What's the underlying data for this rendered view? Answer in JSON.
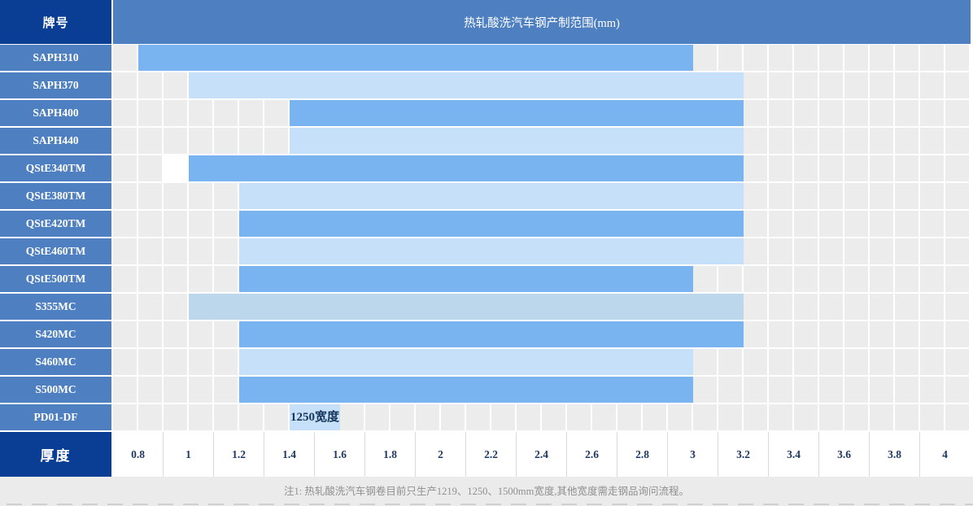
{
  "header": {
    "corner_label": "牌号",
    "title": "热轧酸洗汽车钢产制范围(mm)"
  },
  "axis": {
    "label": "厚度",
    "ticks": [
      "0.8",
      "1",
      "1.2",
      "1.4",
      "1.6",
      "1.8",
      "2",
      "2.2",
      "2.4",
      "2.6",
      "2.8",
      "3",
      "3.2",
      "3.4",
      "3.6",
      "3.8",
      "4"
    ]
  },
  "note": "注1: 热轧酸洗汽车钢卷目前只生产1219、1250、1500mm宽度,其他宽度需走钢品询问流程。",
  "colors": {
    "dark_header": "#0a3e94",
    "row_header_blue": "#4e80c1",
    "bar_medium": "#79b3f0",
    "bar_light": "#c6e0f9",
    "bar_pale": "#bcd6ec",
    "grid_gray": "#ececec",
    "axis_text_navy": "#1f3864",
    "note_gray": "#8f8f8f"
  },
  "chart_data": {
    "type": "bar",
    "orientation": "horizontal-range",
    "title": "热轧酸洗汽车钢产制范围(mm)",
    "xlabel": "厚度",
    "x_unit": "mm",
    "xlim": [
      0.7,
      4.1
    ],
    "x_ticks": [
      0.8,
      1,
      1.2,
      1.4,
      1.6,
      1.8,
      2,
      2.2,
      2.4,
      2.6,
      2.8,
      3,
      3.2,
      3.4,
      3.6,
      3.8,
      4
    ],
    "grid": "0.1mm half-cell white gridlines on gray",
    "rows": [
      {
        "grade": "SAPH310",
        "min": 0.8,
        "max": 3.0,
        "shade": "medium"
      },
      {
        "grade": "SAPH370",
        "min": 1.0,
        "max": 3.2,
        "shade": "light"
      },
      {
        "grade": "SAPH400",
        "min": 1.4,
        "max": 3.2,
        "shade": "medium"
      },
      {
        "grade": "SAPH440",
        "min": 1.4,
        "max": 3.2,
        "shade": "light"
      },
      {
        "grade": "QStE340TM",
        "min": 1.0,
        "max": 3.2,
        "shade": "medium",
        "white_cell": {
          "min": 0.9,
          "max": 1.0
        }
      },
      {
        "grade": "QStE380TM",
        "min": 1.2,
        "max": 3.2,
        "shade": "light"
      },
      {
        "grade": "QStE420TM",
        "min": 1.2,
        "max": 3.2,
        "shade": "medium"
      },
      {
        "grade": "QStE460TM",
        "min": 1.2,
        "max": 3.2,
        "shade": "light"
      },
      {
        "grade": "QStE500TM",
        "min": 1.2,
        "max": 3.0,
        "shade": "medium"
      },
      {
        "grade": "S355MC",
        "min": 1.0,
        "max": 3.2,
        "shade": "pale"
      },
      {
        "grade": "S420MC",
        "min": 1.2,
        "max": 3.2,
        "shade": "medium"
      },
      {
        "grade": "S460MC",
        "min": 1.2,
        "max": 3.0,
        "shade": "light"
      },
      {
        "grade": "S500MC",
        "min": 1.2,
        "max": 3.0,
        "shade": "medium"
      },
      {
        "grade": "PD01-DF",
        "min": 1.4,
        "max": 1.6,
        "shade": "light",
        "bar_label": "1250宽度"
      }
    ]
  }
}
